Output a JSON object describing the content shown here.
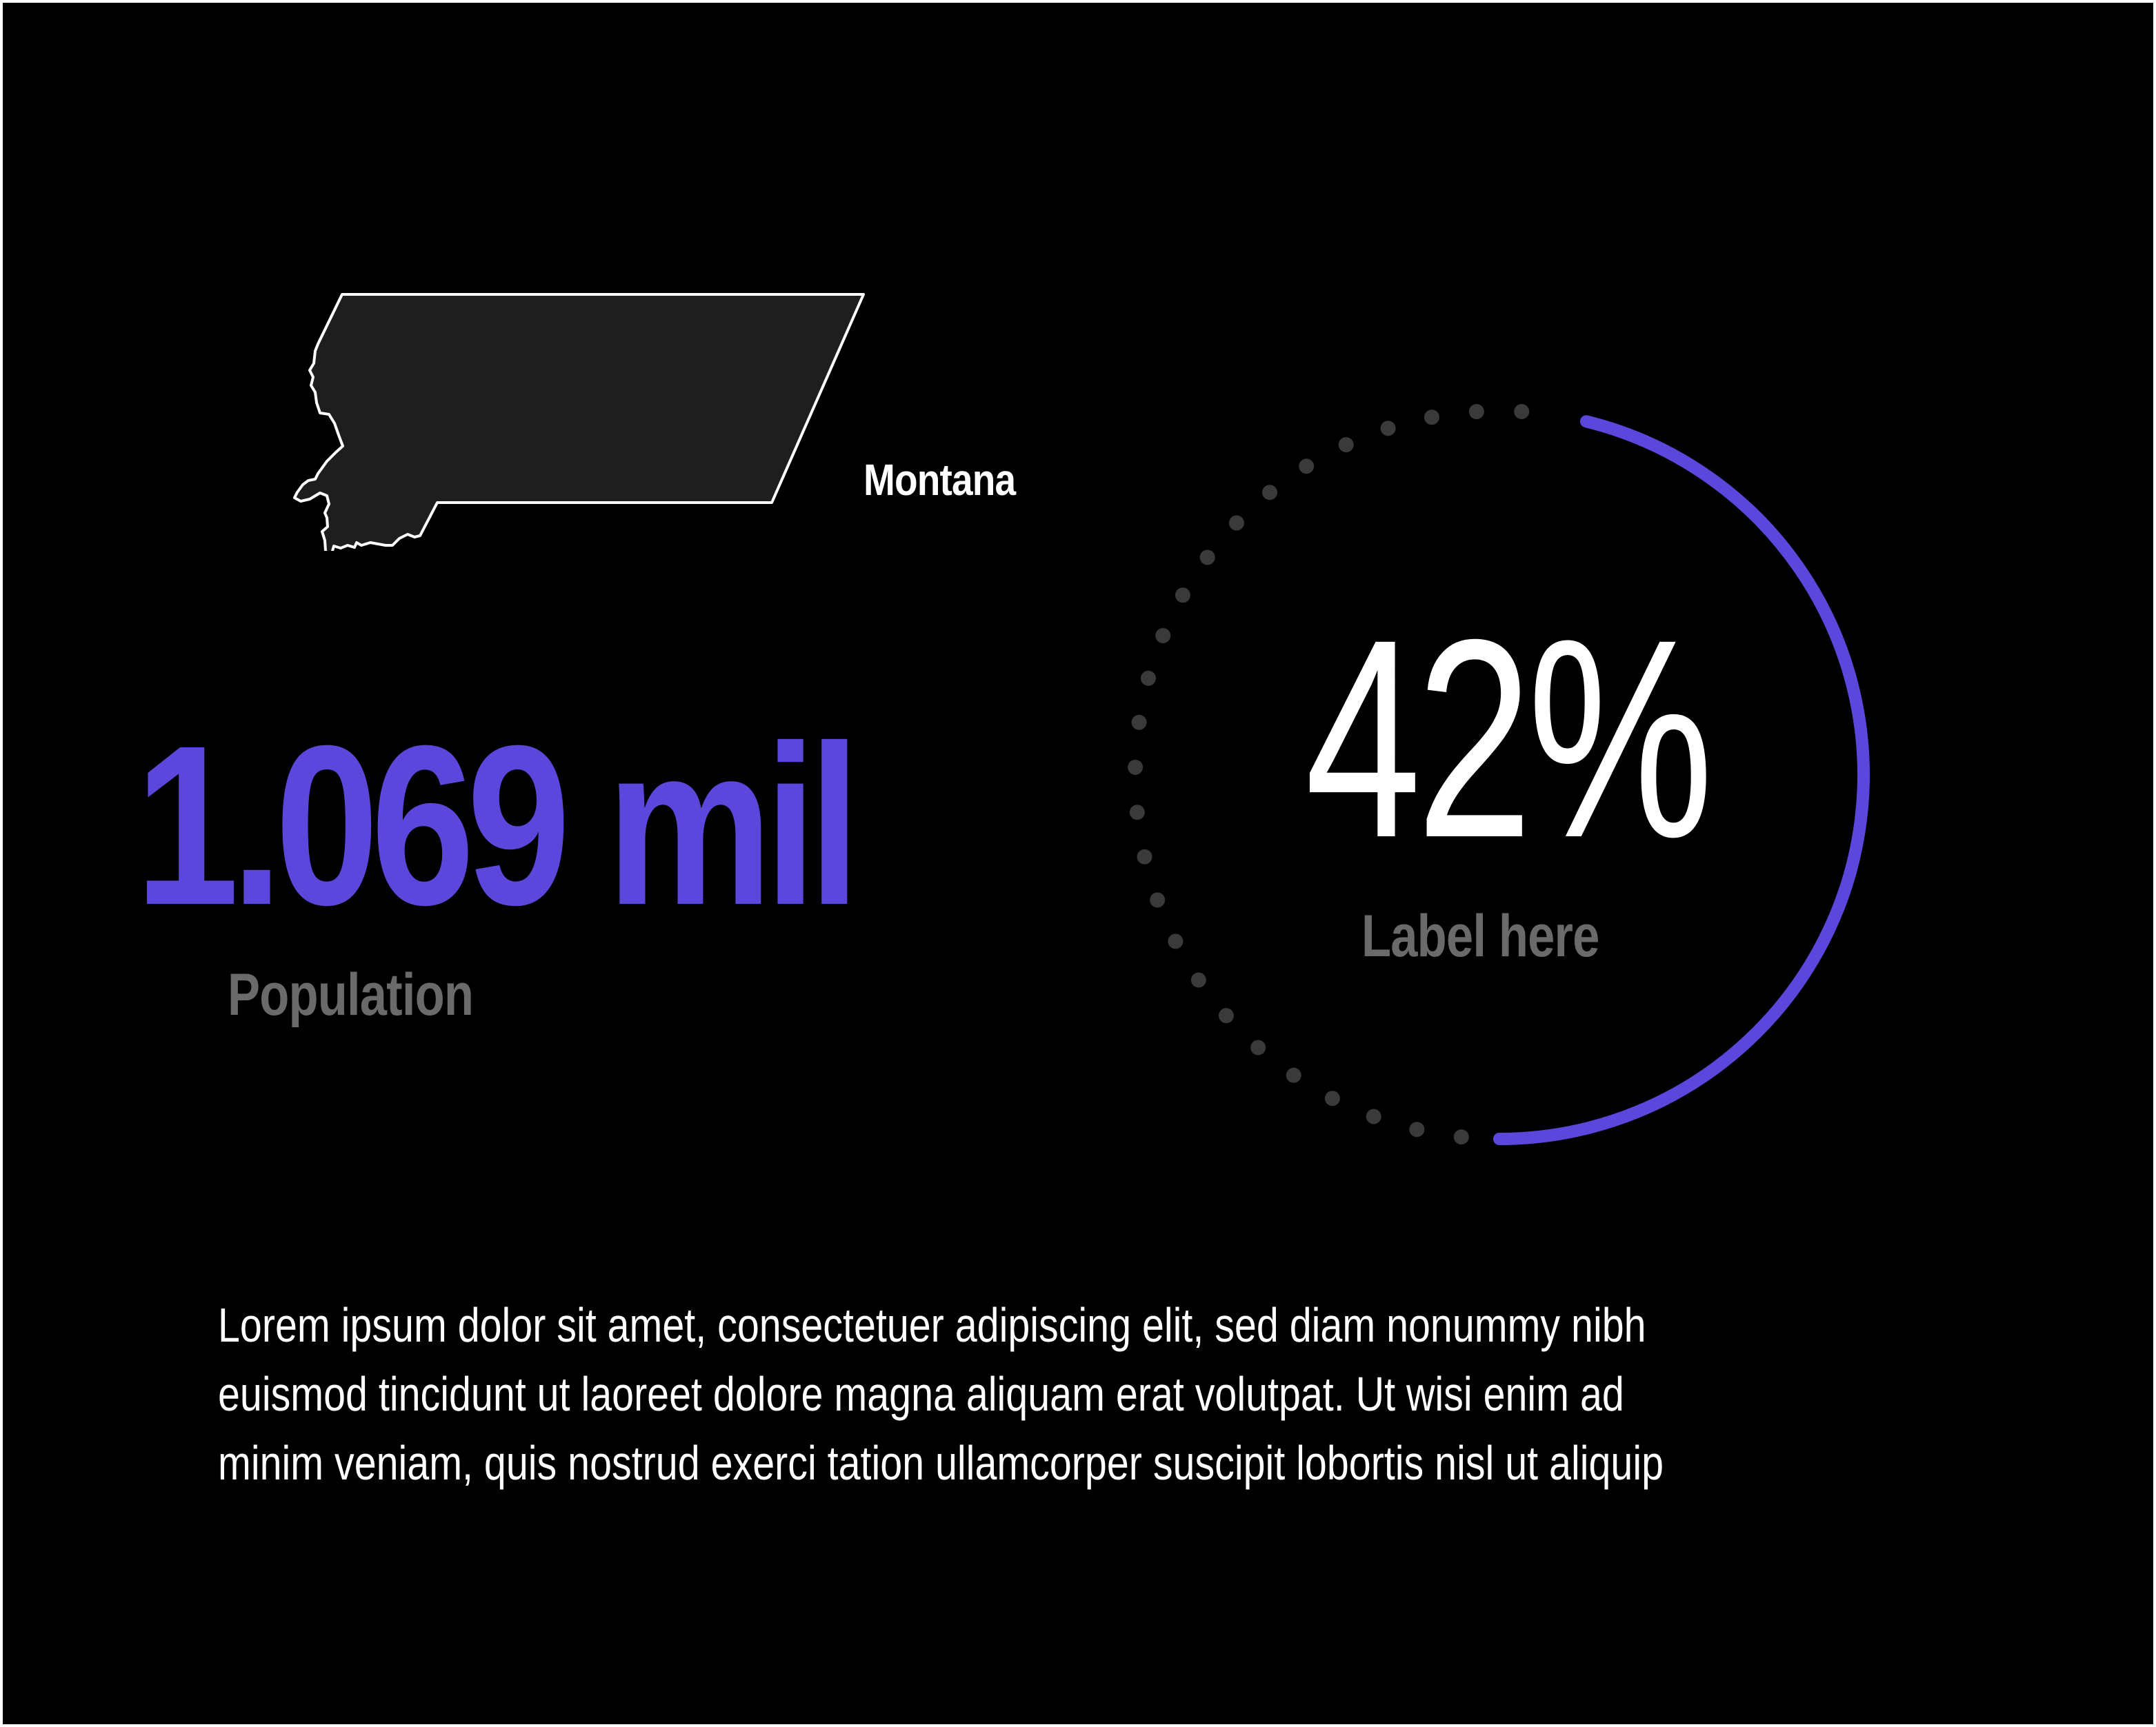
{
  "state": {
    "name": "Montana",
    "icon": "montana-state-outline-icon"
  },
  "population": {
    "value": "1.069 mil",
    "label": "Population"
  },
  "gauge": {
    "value_text": "42%",
    "label": "Label here",
    "percent": 42
  },
  "body": {
    "lines": [
      "Lorem ipsum dolor sit amet, consectetuer adipiscing elit, sed diam nonummy nibh",
      "euismod tincidunt ut laoreet dolore magna aliquam erat volutpat. Ut wisi enim ad",
      "minim veniam, quis nostrud exerci tation ullamcorper suscipit lobortis nisl ut aliquip"
    ]
  },
  "colors": {
    "background": "#000000",
    "accent": "#5b47dc",
    "muted_label": "#6a6a6a",
    "state_fill": "#1e1e1e",
    "dot": "#3a3a3a"
  }
}
